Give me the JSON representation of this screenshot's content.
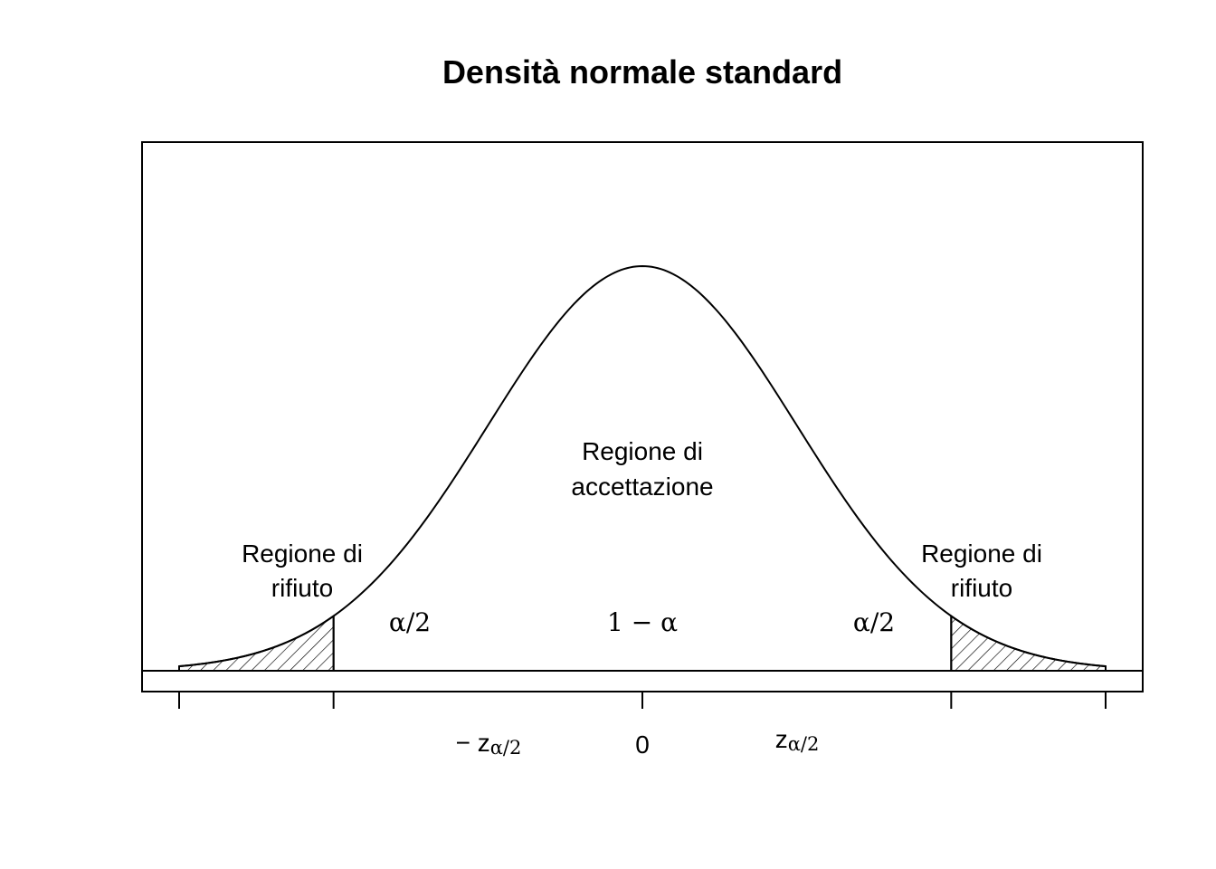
{
  "chart_data": {
    "type": "area",
    "title": "Densità normale standard",
    "distribution": "standard normal density",
    "x_range": [
      -3,
      3
    ],
    "critical_value": 2,
    "shading": "hatched",
    "ticks": [
      {
        "value": -3,
        "label": ""
      },
      {
        "value": -2,
        "label_main": "− z",
        "label_sub": "α/2"
      },
      {
        "value": 0,
        "label": "0"
      },
      {
        "value": 2,
        "label_main": "z",
        "label_sub": "α/2"
      },
      {
        "value": 3,
        "label": ""
      }
    ],
    "regions": {
      "left_rejection": {
        "label_line1": "Regione di",
        "label_line2": "rifiuto",
        "area_label": "α/2"
      },
      "acceptance": {
        "label_line1": "Regione di",
        "label_line2": "accettazione",
        "area_label": "1 − α"
      },
      "right_rejection": {
        "label_line1": "Regione di",
        "label_line2": "rifiuto",
        "area_label": "α/2"
      }
    }
  }
}
